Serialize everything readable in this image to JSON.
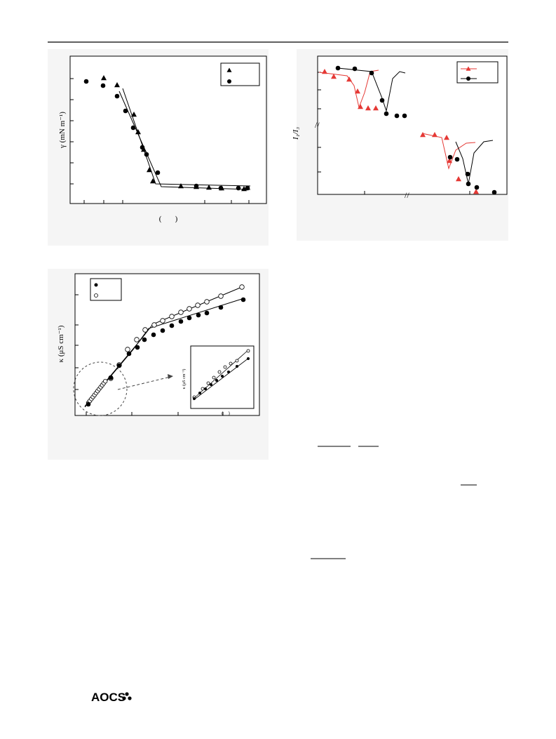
{
  "figures": [
    {
      "y_label": "γ (mN m⁻¹)",
      "x_label": "(       )"
    },
    {
      "y_label": "I₁/I₃"
    },
    {
      "y_label": "κ (μS cm⁻¹)",
      "inset_y_label": "κ (μS cm⁻¹)",
      "inset_x_label": "(    )"
    }
  ],
  "footer": {
    "logo": "AOCS"
  }
}
